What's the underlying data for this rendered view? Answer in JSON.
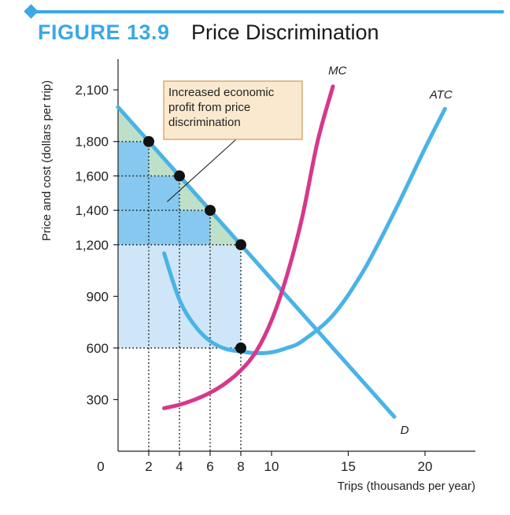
{
  "figure": {
    "label": "FIGURE 13.9",
    "title": "Price Discrimination"
  },
  "colors": {
    "accent": "#3aa9e4",
    "demand": "#4ab3e6",
    "atc": "#4ab3e6",
    "mc": "#d6388b",
    "fill_base": "#cfe6f8",
    "fill_mid": "#86c8ef",
    "fill_triangle": "#bfe0c8",
    "annotation_bg": "#fbe9cf",
    "annotation_border": "#c89c5a"
  },
  "chart_data": {
    "type": "line",
    "title": "Price Discrimination",
    "xlabel": "Trips (thousands per year)",
    "ylabel": "Price and cost (dollars per trip)",
    "xlim": [
      0,
      23
    ],
    "ylim": [
      0,
      2300
    ],
    "x_ticks": [
      0,
      2,
      4,
      6,
      8,
      10,
      15,
      20
    ],
    "y_ticks": [
      300,
      600,
      900,
      1200,
      1400,
      1600,
      1800,
      2100
    ],
    "series": [
      {
        "name": "D",
        "points": [
          [
            0,
            2000
          ],
          [
            18,
            200
          ]
        ]
      },
      {
        "name": "MC",
        "points": [
          [
            3,
            250
          ],
          [
            4,
            270
          ],
          [
            5,
            300
          ],
          [
            6,
            340
          ],
          [
            7,
            395
          ],
          [
            8,
            470
          ],
          [
            9,
            580
          ],
          [
            10,
            760
          ],
          [
            11,
            1020
          ],
          [
            12,
            1360
          ],
          [
            13,
            1800
          ],
          [
            14,
            2120
          ]
        ]
      },
      {
        "name": "ATC",
        "points": [
          [
            3,
            1150
          ],
          [
            4,
            880
          ],
          [
            5,
            730
          ],
          [
            6,
            640
          ],
          [
            7,
            595
          ],
          [
            8,
            580
          ],
          [
            9,
            570
          ],
          [
            10,
            575
          ],
          [
            11,
            600
          ],
          [
            12,
            640
          ],
          [
            14,
            790
          ],
          [
            16,
            1050
          ],
          [
            18,
            1390
          ],
          [
            20,
            1760
          ],
          [
            21.3,
            1990
          ]
        ]
      }
    ],
    "points": [
      [
        2,
        1800
      ],
      [
        4,
        1600
      ],
      [
        6,
        1400
      ],
      [
        8,
        1200
      ],
      [
        8,
        600
      ]
    ],
    "price_steps": [
      1800,
      1600,
      1400,
      1200
    ],
    "step_quantities": [
      2,
      4,
      6,
      8
    ],
    "average_total_cost": 600,
    "annotation": {
      "lines": [
        "Increased economic",
        "profit from price",
        "discrimination"
      ],
      "target": [
        3.2,
        1450
      ]
    }
  }
}
